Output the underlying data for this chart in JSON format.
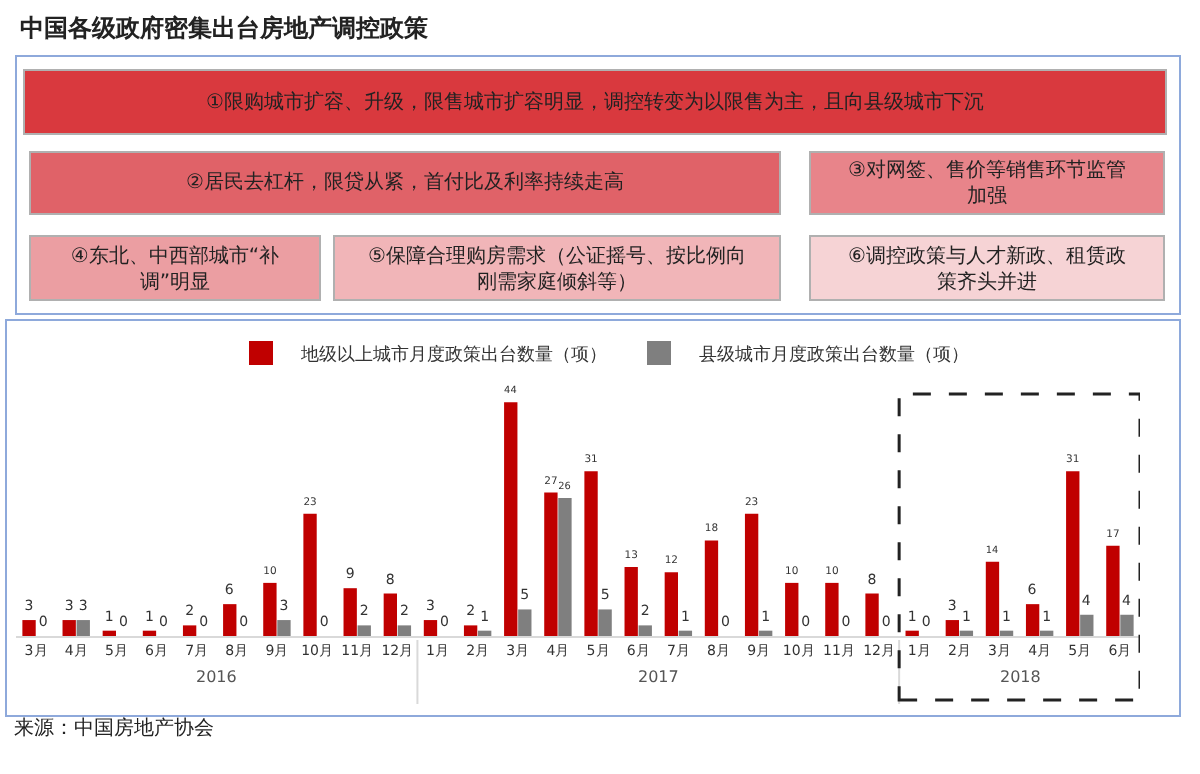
{
  "chart_data": {
    "type": "bar",
    "title": "中国各级政府密集出台房地产调控政策",
    "annotations": [
      "①限购城市扩容、升级，限售城市扩容明显，调控转变为以限售为主，且向县级城市下沉",
      "②居民去杠杆，限贷从紧，首付比及利率持续走高",
      "③对网签、售价等销售环节监管加强",
      "④东北、中西部城市“补调”明显",
      "⑤保障合理购房需求（公证摇号、按比例向刚需家庭倾斜等）",
      "⑥调控政策与人才新政、租赁政策齐头并进",
      "2016",
      "2017",
      "2018",
      "来源：中国房地产协会"
    ],
    "categories": [
      "3月",
      "4月",
      "5月",
      "6月",
      "7月",
      "8月",
      "9月",
      "10月",
      "11月",
      "12月",
      "1月",
      "2月",
      "3月",
      "4月",
      "5月",
      "6月",
      "7月",
      "8月",
      "9月",
      "10月",
      "11月",
      "12月",
      "1月",
      "2月",
      "3月",
      "4月",
      "5月",
      "6月"
    ],
    "series": [
      {
        "name": "地级以上城市月度政策出台数量（项）",
        "color": "#c00000",
        "values": [
          3,
          3,
          1,
          1,
          2,
          6,
          10,
          23,
          9,
          8,
          3,
          2,
          44,
          27,
          31,
          13,
          12,
          18,
          23,
          10,
          10,
          8,
          1,
          3,
          14,
          6,
          31,
          17
        ]
      },
      {
        "name": "县级城市月度政策出台数量（项）",
        "color": "#7f7f7f",
        "values": [
          0,
          3,
          0,
          0,
          0,
          0,
          3,
          0,
          2,
          2,
          0,
          1,
          5,
          26,
          5,
          2,
          1,
          0,
          1,
          0,
          0,
          0,
          0,
          1,
          1,
          1,
          4,
          4
        ]
      }
    ],
    "data_labels": true,
    "legend": "top",
    "tick_labels": "x"
  }
}
